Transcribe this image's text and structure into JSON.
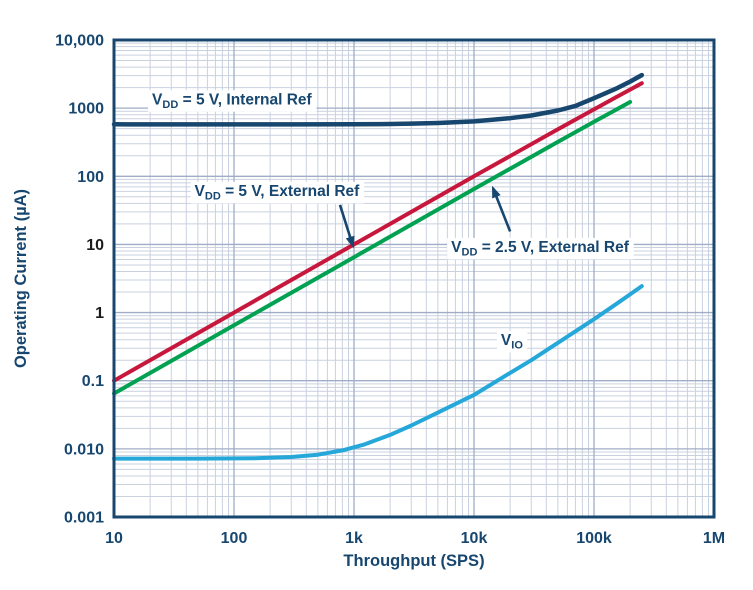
{
  "palette": {
    "navy": "#17466f",
    "black": "#1b1b1b",
    "grid_minor": "#c9d1df",
    "grid_major": "#9fadc6",
    "frame": "#17466f",
    "background": "#ffffff",
    "annotation_bg": "#ffffff",
    "arrow": "#17466f"
  },
  "chart_data": {
    "type": "line",
    "x_scale": "log",
    "y_scale": "log",
    "xlabel": "Throughput (SPS)",
    "ylabel": "Operating Current (µA)",
    "xlim": [
      10,
      1000000
    ],
    "ylim": [
      0.001,
      10000
    ],
    "grid": "log major and minor, on",
    "legend_position": "inline annotations",
    "x_ticks": [
      {
        "value": 10,
        "label": "10",
        "color": "navy"
      },
      {
        "value": 100,
        "label": "100",
        "color": "navy"
      },
      {
        "value": 1000,
        "label": "1k",
        "color": "navy"
      },
      {
        "value": 10000,
        "label": "10k",
        "color": "navy"
      },
      {
        "value": 100000,
        "label": "100k",
        "color": "navy"
      },
      {
        "value": 1000000,
        "label": "1M",
        "color": "navy"
      }
    ],
    "y_ticks": [
      {
        "value": 10000,
        "label": "10,000",
        "color": "navy"
      },
      {
        "value": 1000,
        "label": "1000",
        "color": "navy"
      },
      {
        "value": 100,
        "label": "100",
        "color": "navy"
      },
      {
        "value": 10,
        "label": "10",
        "color": "black"
      },
      {
        "value": 1,
        "label": "1",
        "color": "black"
      },
      {
        "value": 0.1,
        "label": "0.1",
        "color": "navy"
      },
      {
        "value": 0.01,
        "label": "0.010",
        "color": "navy"
      },
      {
        "value": 0.001,
        "label": "0.001",
        "color": "navy"
      }
    ],
    "series": [
      {
        "name": "VDD = 5 V, Internal Ref",
        "color": "#17466f",
        "width": 4.5,
        "points": [
          [
            10,
            580
          ],
          [
            30,
            578
          ],
          [
            100,
            577
          ],
          [
            300,
            577
          ],
          [
            1000,
            580
          ],
          [
            2000,
            586
          ],
          [
            3000,
            593
          ],
          [
            5000,
            606
          ],
          [
            10000,
            640
          ],
          [
            20000,
            712
          ],
          [
            30000,
            780
          ],
          [
            50000,
            925
          ],
          [
            70000,
            1080
          ],
          [
            100000,
            1400
          ],
          [
            150000,
            1900
          ],
          [
            200000,
            2450
          ],
          [
            250000,
            3050
          ]
        ]
      },
      {
        "name": "VDD = 5 V, External Ref",
        "color": "#c8173c",
        "width": 4,
        "points": [
          [
            10,
            0.1
          ],
          [
            100,
            1
          ],
          [
            1000,
            10
          ],
          [
            10000,
            100
          ],
          [
            50000,
            490
          ],
          [
            100000,
            960
          ],
          [
            150000,
            1420
          ],
          [
            200000,
            1870
          ],
          [
            250000,
            2320
          ]
        ]
      },
      {
        "name": "VDD = 2.5 V, External Ref",
        "color": "#00a150",
        "width": 4,
        "points": [
          [
            10,
            0.065
          ],
          [
            100,
            0.65
          ],
          [
            1000,
            6.5
          ],
          [
            10000,
            65
          ],
          [
            50000,
            320
          ],
          [
            100000,
            630
          ],
          [
            150000,
            930
          ],
          [
            200000,
            1230
          ]
        ]
      },
      {
        "name": "VIO",
        "color": "#25a8d9",
        "width": 4,
        "points": [
          [
            10,
            0.0072
          ],
          [
            50,
            0.0072
          ],
          [
            150,
            0.0073
          ],
          [
            300,
            0.0076
          ],
          [
            500,
            0.0082
          ],
          [
            800,
            0.0095
          ],
          [
            1200,
            0.0115
          ],
          [
            2000,
            0.016
          ],
          [
            3000,
            0.022
          ],
          [
            5000,
            0.034
          ],
          [
            8000,
            0.051
          ],
          [
            10000,
            0.062
          ],
          [
            20000,
            0.13
          ],
          [
            30000,
            0.2
          ],
          [
            50000,
            0.36
          ],
          [
            100000,
            0.8
          ],
          [
            150000,
            1.3
          ],
          [
            200000,
            1.85
          ],
          [
            250000,
            2.45
          ]
        ]
      }
    ],
    "annotations": [
      {
        "id": "vdd5-internal-ref",
        "text": "V_{DD} = 5 V, Internal Ref",
        "x": 96,
        "y": 1350,
        "arrow": null
      },
      {
        "id": "vdd5-external-ref",
        "text": "V_{DD} = 5 V, External Ref",
        "x": 228,
        "y": 61,
        "arrow": {
          "from": [
            764,
            38
          ],
          "to": [
            980,
            9.5
          ]
        }
      },
      {
        "id": "vdd25-external-ref",
        "text": "V_{DD} = 2.5 V, External Ref",
        "x": 35500,
        "y": 9.2,
        "arrow": {
          "from": [
            20000,
            15.5
          ],
          "to": [
            14400,
            67
          ]
        }
      },
      {
        "id": "vio",
        "text": "V_{IO}",
        "x": 20700,
        "y": 0.395,
        "arrow": null
      }
    ]
  }
}
